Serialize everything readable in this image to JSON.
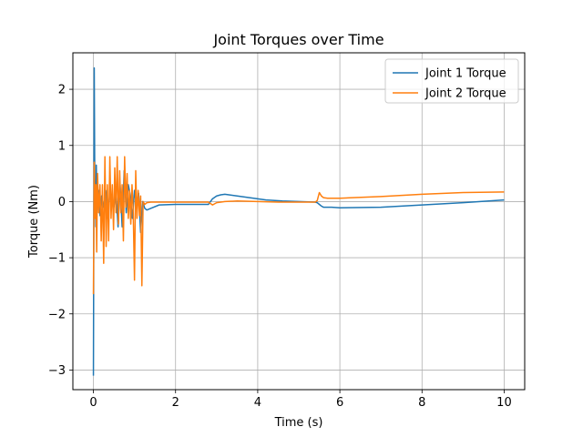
{
  "chart_data": {
    "type": "line",
    "title": "Joint Torques over Time",
    "xlabel": "Time (s)",
    "ylabel": "Torque (Nm)",
    "xlim": [
      -0.5,
      10.5
    ],
    "ylim": [
      -3.35,
      2.65
    ],
    "xticks": [
      0,
      2,
      4,
      6,
      8,
      10
    ],
    "yticks": [
      -3,
      -2,
      -1,
      0,
      1,
      2
    ],
    "xtick_labels": [
      "0",
      "2",
      "4",
      "6",
      "8",
      "10"
    ],
    "ytick_labels": [
      "−3",
      "−2",
      "−1",
      "0",
      "1",
      "2"
    ],
    "grid": true,
    "legend_position": "top-right",
    "series": [
      {
        "name": "Joint 1 Torque",
        "color": "#1f77b4",
        "x": [
          0.0,
          0.02,
          0.03,
          0.04,
          0.05,
          0.06,
          0.07,
          0.09,
          0.1,
          0.12,
          0.14,
          0.16,
          0.2,
          0.25,
          0.3,
          0.35,
          0.4,
          0.45,
          0.5,
          0.55,
          0.6,
          0.65,
          0.7,
          0.75,
          0.8,
          0.85,
          0.9,
          0.95,
          1.0,
          1.05,
          1.1,
          1.15,
          1.2,
          1.25,
          1.3,
          1.4,
          1.6,
          2.0,
          2.4,
          2.8,
          2.9,
          3.0,
          3.1,
          3.2,
          3.3,
          3.5,
          3.8,
          4.2,
          4.6,
          5.0,
          5.4,
          5.45,
          5.5,
          5.55,
          5.6,
          5.8,
          6.0,
          7.0,
          8.0,
          9.0,
          10.0
        ],
        "y": [
          -3.1,
          2.38,
          0.8,
          -0.3,
          0.2,
          -0.45,
          0.65,
          -0.2,
          0.3,
          -0.1,
          0.2,
          -0.25,
          0.1,
          -0.1,
          0.2,
          -0.3,
          0.15,
          0.05,
          -0.1,
          0.2,
          -0.45,
          0.3,
          -0.45,
          0.55,
          -0.2,
          0.3,
          0.1,
          -0.3,
          0.2,
          -0.1,
          0.15,
          -0.55,
          0.0,
          -0.12,
          -0.15,
          -0.12,
          -0.06,
          -0.05,
          -0.05,
          -0.05,
          0.05,
          0.1,
          0.12,
          0.13,
          0.12,
          0.1,
          0.07,
          0.03,
          0.01,
          0.0,
          -0.01,
          -0.02,
          -0.05,
          -0.08,
          -0.1,
          -0.1,
          -0.11,
          -0.1,
          -0.06,
          -0.02,
          0.03
        ]
      },
      {
        "name": "Joint 2 Torque",
        "color": "#ff7f0e",
        "x": [
          0.0,
          0.02,
          0.04,
          0.06,
          0.08,
          0.1,
          0.13,
          0.16,
          0.19,
          0.22,
          0.25,
          0.28,
          0.31,
          0.34,
          0.37,
          0.4,
          0.43,
          0.46,
          0.49,
          0.52,
          0.55,
          0.58,
          0.61,
          0.64,
          0.67,
          0.7,
          0.73,
          0.76,
          0.79,
          0.82,
          0.85,
          0.88,
          0.91,
          0.94,
          0.97,
          1.0,
          1.03,
          1.06,
          1.09,
          1.12,
          1.15,
          1.18,
          1.21,
          1.25,
          1.3,
          1.4,
          1.6,
          2.0,
          2.4,
          2.8,
          2.9,
          3.0,
          3.2,
          3.5,
          4.0,
          4.5,
          5.0,
          5.4,
          5.45,
          5.5,
          5.55,
          5.6,
          5.7,
          6.0,
          7.0,
          8.0,
          9.0,
          10.0
        ],
        "y": [
          -1.65,
          0.7,
          -0.3,
          0.3,
          -0.9,
          0.5,
          -0.2,
          0.3,
          -0.7,
          0.3,
          -1.1,
          0.8,
          -0.8,
          0.3,
          -0.7,
          0.8,
          -0.3,
          0.3,
          -0.5,
          0.6,
          -0.2,
          0.8,
          -0.4,
          0.55,
          -0.2,
          0.3,
          -0.7,
          0.8,
          -0.1,
          0.5,
          -0.3,
          0.2,
          -0.4,
          0.3,
          -0.2,
          -1.4,
          0.55,
          -0.3,
          0.2,
          -0.25,
          0.1,
          -1.5,
          0.0,
          -0.05,
          -0.02,
          -0.01,
          -0.01,
          -0.01,
          -0.01,
          -0.01,
          -0.06,
          -0.02,
          0.0,
          0.01,
          0.0,
          -0.01,
          -0.01,
          -0.01,
          0.02,
          0.16,
          0.1,
          0.07,
          0.06,
          0.06,
          0.09,
          0.13,
          0.16,
          0.17
        ]
      }
    ]
  }
}
